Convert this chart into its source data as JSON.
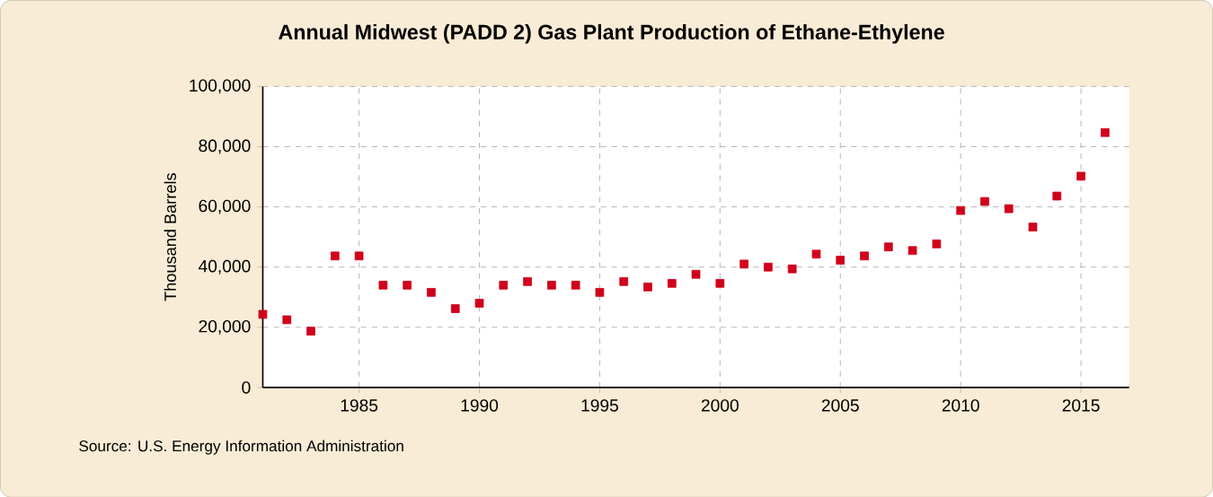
{
  "chart_data": {
    "type": "scatter",
    "title": "Annual Midwest (PADD 2) Gas Plant Production of Ethane-Ethylene",
    "ylabel": "Thousand Barrels",
    "x": [
      1981,
      1982,
      1983,
      1984,
      1985,
      1986,
      1987,
      1988,
      1989,
      1990,
      1991,
      1992,
      1993,
      1994,
      1995,
      1996,
      1997,
      1998,
      1999,
      2000,
      2001,
      2002,
      2003,
      2004,
      2005,
      2006,
      2007,
      2008,
      2009,
      2010,
      2011,
      2012,
      2013,
      2014,
      2015,
      2016
    ],
    "series": [
      {
        "color": "#d0021b",
        "values": [
          24300,
          22500,
          18700,
          43700,
          43700,
          34000,
          34000,
          31600,
          26200,
          28000,
          34000,
          35200,
          34000,
          34000,
          31600,
          35200,
          33400,
          34600,
          37600,
          34600,
          41000,
          40000,
          39400,
          44300,
          42300,
          43700,
          46700,
          45500,
          47700,
          58800,
          61800,
          59400,
          53300,
          63600,
          70200,
          84700
        ]
      }
    ],
    "xlim": [
      1981,
      2017
    ],
    "xticks": [
      1985,
      1990,
      1995,
      2000,
      2005,
      2010,
      2015
    ],
    "ylim": [
      0,
      100000
    ],
    "yticks": [
      {
        "value": 0,
        "label": "0"
      },
      {
        "value": 20000,
        "label": "20,000"
      },
      {
        "value": 40000,
        "label": "40,000"
      },
      {
        "value": 60000,
        "label": "60,000"
      },
      {
        "value": 80000,
        "label": "80,000"
      },
      {
        "value": 100000,
        "label": "100,000"
      }
    ],
    "grid": true,
    "marker": "square",
    "annotations": [
      "Source: U.S. Energy Information Administration"
    ]
  }
}
